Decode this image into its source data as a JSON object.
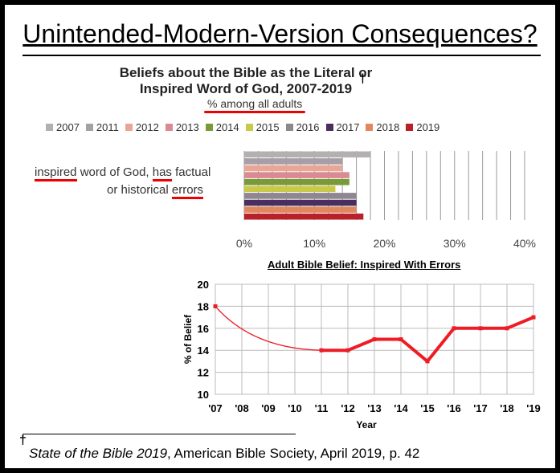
{
  "slide": {
    "title": "Unintended-Modern-Version Consequences?",
    "footnote_mark": "†",
    "footnote_source": "State of the Bible 2019",
    "footnote_rest": ", American Bible Society, April 2019, p. 42"
  },
  "chart_data": [
    {
      "type": "bar",
      "orientation": "horizontal",
      "title_line1": "Beliefs about the Bible as the Literal or",
      "title_line2": "Inspired Word of God, 2007-2019",
      "title_mark": "†",
      "subtitle": "% among all adults",
      "category_line1_parts": [
        "inspired",
        " word of God, ",
        "has",
        " factual"
      ],
      "category_line2_parts": [
        "or historical ",
        "errors"
      ],
      "xlim": [
        0,
        40
      ],
      "xticks": [
        "0%",
        "10%",
        "20%",
        "30%",
        "40%"
      ],
      "grid": true,
      "legend_position": "top",
      "series": [
        {
          "name": "2007",
          "value": 18,
          "color": "#b3b0b0"
        },
        {
          "name": "2011",
          "value": 14,
          "color": "#a69fa8"
        },
        {
          "name": "2012",
          "value": 14,
          "color": "#e8a796"
        },
        {
          "name": "2013",
          "value": 15,
          "color": "#d98a92"
        },
        {
          "name": "2014",
          "value": 15,
          "color": "#7a9a3a"
        },
        {
          "name": "2015",
          "value": 13,
          "color": "#c8c84a"
        },
        {
          "name": "2016",
          "value": 16,
          "color": "#8e878f"
        },
        {
          "name": "2017",
          "value": 16,
          "color": "#4a2f5e"
        },
        {
          "name": "2018",
          "value": 16,
          "color": "#e0875e"
        },
        {
          "name": "2019",
          "value": 17,
          "color": "#b8202a"
        }
      ]
    },
    {
      "type": "line",
      "title": "Adult Bible Belief: Inspired With Errors",
      "xlabel": "Year",
      "ylabel": "% of Belief",
      "x": [
        "'07",
        "'08",
        "'09",
        "'10",
        "'11",
        "'12",
        "'13",
        "'14",
        "'15",
        "'16",
        "'17",
        "'18",
        "'19"
      ],
      "points": [
        {
          "x": "'07",
          "y": 18
        },
        {
          "x": "'11",
          "y": 14
        },
        {
          "x": "'12",
          "y": 14
        },
        {
          "x": "'13",
          "y": 15
        },
        {
          "x": "'14",
          "y": 15
        },
        {
          "x": "'15",
          "y": 13
        },
        {
          "x": "'16",
          "y": 16
        },
        {
          "x": "'17",
          "y": 16
        },
        {
          "x": "'18",
          "y": 16
        },
        {
          "x": "'19",
          "y": 17
        }
      ],
      "ylim": [
        10,
        20
      ],
      "yticks": [
        10,
        12,
        14,
        16,
        18,
        20
      ],
      "grid": true,
      "line_color": "#ee1c25"
    }
  ]
}
